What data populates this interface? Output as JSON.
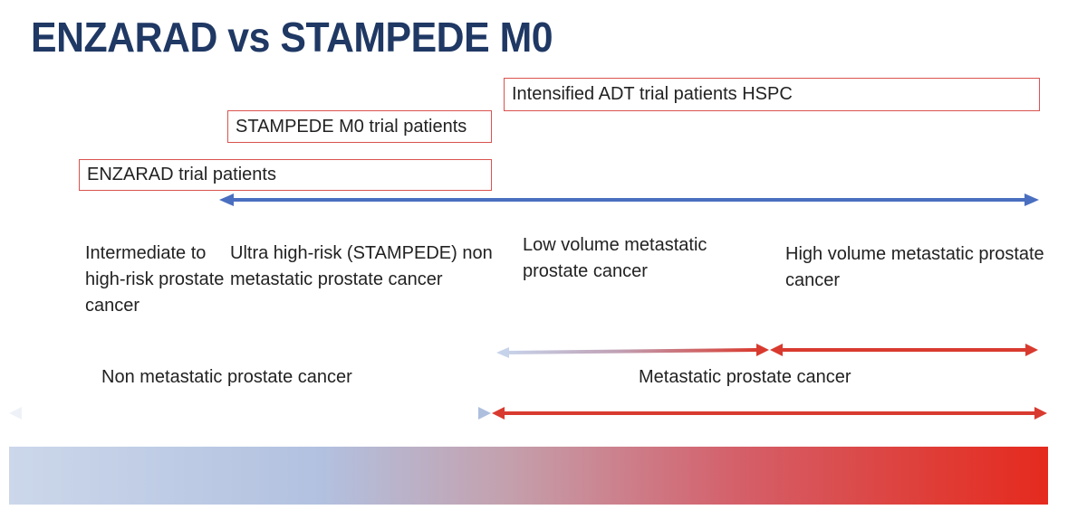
{
  "title": "ENZARAD vs STAMPEDE M0",
  "trial_boxes": {
    "intensified_adt": "Intensified ADT trial patients HSPC",
    "stampede_m0": "STAMPEDE M0 trial patients",
    "enzarad": "ENZARAD trial patients"
  },
  "categories": [
    "Intermediate to high-risk prostate cancer",
    "Ultra high-risk (STAMPEDE) non metastatic prostate cancer",
    "Low volume metastatic prostate cancer",
    "High volume metastatic prostate cancer"
  ],
  "spectrum_labels": {
    "non_metastatic": "Non metastatic prostate cancer",
    "metastatic": "Metastatic prostate cancer"
  },
  "colors": {
    "title": "#1f3864",
    "blue_arrow": "#4a6fc0",
    "red_arrow": "#d93a2f",
    "box_border": "#d9534f"
  }
}
